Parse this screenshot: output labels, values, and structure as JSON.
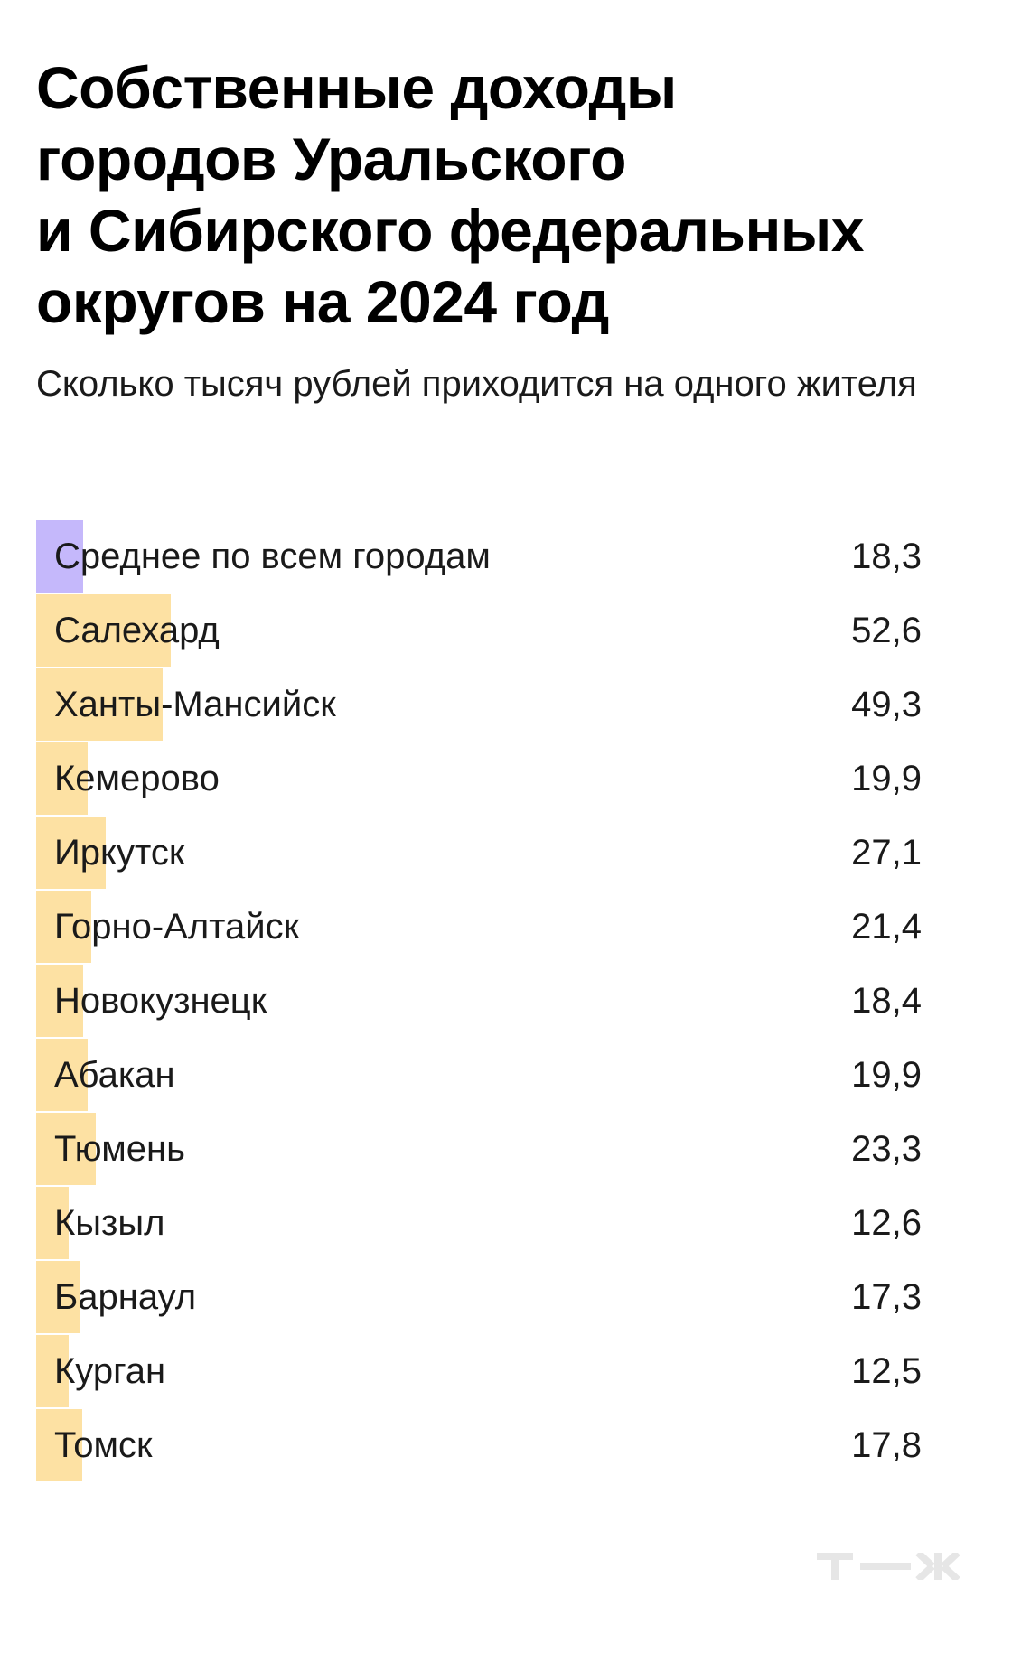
{
  "header": {
    "title": "Собственные доходы\nгородов Уральского\nи Сибирского федеральных\nокругов на 2024 год",
    "subtitle": "Сколько тысяч рублей приходится на одного жителя"
  },
  "colors": {
    "average_bar": "#c5b8fb",
    "city_bar": "#fde1a3",
    "text": "#1a1a1a",
    "logo": "#e6e6e6"
  },
  "chart_data": {
    "type": "bar",
    "orientation": "horizontal",
    "title": "Собственные доходы городов Уральского и Сибирского федеральных округов на 2024 год",
    "subtitle": "Сколько тысяч рублей приходится на одного жителя",
    "categories": [
      "Среднее по всем городам",
      "Салехард",
      "Ханты-Мансийск",
      "Кемерово",
      "Иркутск",
      "Горно-Алтайск",
      "Новокузнецк",
      "Абакан",
      "Тюмень",
      "Кызыл",
      "Барнаул",
      "Курган",
      "Томск"
    ],
    "values": [
      18.3,
      52.6,
      49.3,
      19.9,
      27.1,
      21.4,
      18.4,
      19.9,
      23.3,
      12.6,
      17.3,
      12.5,
      17.8
    ],
    "value_labels": [
      "18,3",
      "52,6",
      "49,3",
      "19,9",
      "27,1",
      "21,4",
      "18,4",
      "19,9",
      "23,3",
      "12,6",
      "17,3",
      "12,5",
      "17,8"
    ],
    "highlight_index": 0,
    "xlim": [
      0,
      345
    ],
    "grid": false,
    "legend": "none"
  },
  "logo": {
    "text": "т—ж"
  }
}
